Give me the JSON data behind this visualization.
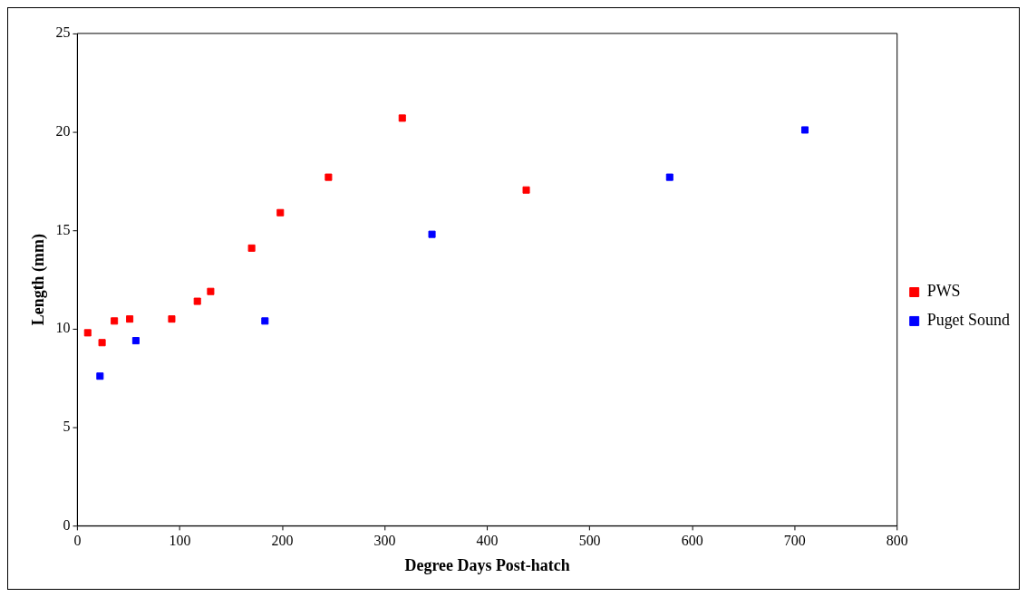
{
  "chart_data": {
    "type": "scatter",
    "xlabel": "Degree Days Post-hatch",
    "ylabel": "Length (mm)",
    "xlim": [
      0,
      800
    ],
    "xticks": [
      0,
      100,
      200,
      300,
      400,
      500,
      600,
      700,
      800
    ],
    "ylim": [
      0,
      25
    ],
    "yticks": [
      0,
      5,
      10,
      15,
      20,
      25
    ],
    "marker": "square",
    "legend": "right",
    "grid": false,
    "series": [
      {
        "name": "PWS",
        "color": "#ff0000",
        "x": [
          10,
          24,
          36,
          51,
          92,
          117,
          130,
          170,
          198,
          245,
          317,
          438
        ],
        "values": [
          9.8,
          9.3,
          10.4,
          10.5,
          10.5,
          11.4,
          11.9,
          14.1,
          15.9,
          17.7,
          20.7,
          17.05
        ]
      },
      {
        "name": "Puget Sound",
        "color": "#0000ff",
        "x": [
          22,
          57,
          183,
          346,
          578,
          710
        ],
        "values": [
          7.6,
          9.4,
          10.4,
          14.8,
          17.7,
          20.1
        ]
      }
    ]
  }
}
